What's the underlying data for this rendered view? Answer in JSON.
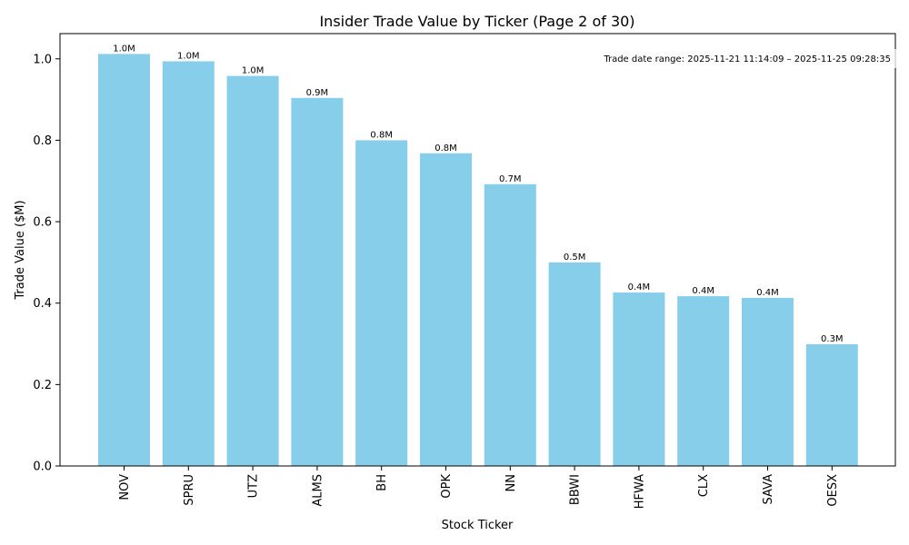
{
  "chart_data": {
    "type": "bar",
    "title": "Insider Trade Value by Ticker (Page 2 of 30)",
    "xlabel": "Stock Ticker",
    "ylabel": "Trade Value ($M)",
    "ylim": [
      0,
      1.062
    ],
    "yticks": [
      0.0,
      0.2,
      0.4,
      0.6,
      0.8,
      1.0
    ],
    "ytick_labels": [
      "0.0",
      "0.2",
      "0.4",
      "0.6",
      "0.8",
      "1.0"
    ],
    "categories": [
      "NOV",
      "SPRU",
      "UTZ",
      "ALMS",
      "BH",
      "OPK",
      "NN",
      "BBWI",
      "HFWA",
      "CLX",
      "SAVA",
      "OESX"
    ],
    "values": [
      1.012,
      0.994,
      0.958,
      0.904,
      0.8,
      0.768,
      0.692,
      0.5,
      0.426,
      0.417,
      0.413,
      0.299
    ],
    "data_labels": [
      "1.0M",
      "1.0M",
      "1.0M",
      "0.9M",
      "0.8M",
      "0.8M",
      "0.7M",
      "0.5M",
      "0.4M",
      "0.4M",
      "0.4M",
      "0.3M"
    ],
    "bar_color": "#87ceeb",
    "grid": false,
    "annotation": "Trade date range: 2025-11-21 11:14:09 – 2025-11-25 09:28:35"
  }
}
